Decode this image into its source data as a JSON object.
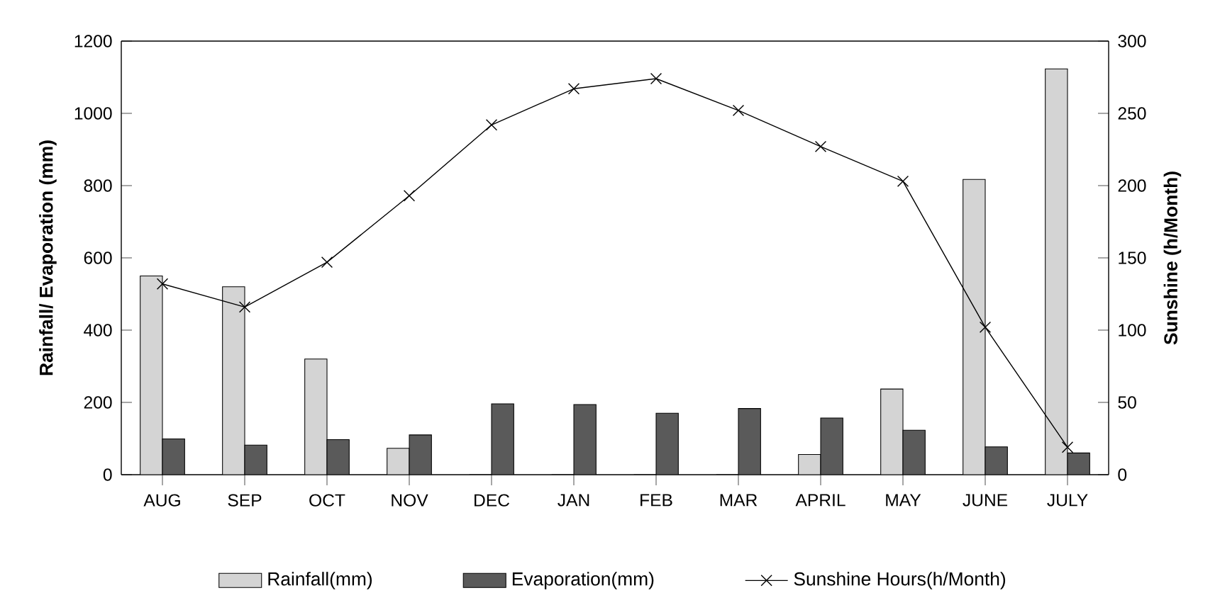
{
  "chart_data": {
    "type": "bar",
    "categories": [
      "AUG",
      "SEP",
      "OCT",
      "NOV",
      "DEC",
      "JAN",
      "FEB",
      "MAR",
      "APRIL",
      "MAY",
      "JUNE",
      "JULY"
    ],
    "ylabel": "Rainfall/ Evaporation (mm)",
    "y2label": "Sunshine (h/Month)",
    "ylim": [
      0,
      1200
    ],
    "yticks": [
      0,
      200,
      400,
      600,
      800,
      1000,
      1200
    ],
    "y2lim": [
      0,
      300
    ],
    "y2ticks": [
      0,
      50,
      100,
      150,
      200,
      250,
      300
    ],
    "series": [
      {
        "name": "Rainfall(mm)",
        "color": "#d4d4d4",
        "values": [
          550,
          520,
          320,
          73,
          0,
          0,
          0,
          0,
          56,
          237,
          817,
          1123
        ]
      },
      {
        "name": "Evaporation(mm)",
        "color": "#5a5a5a",
        "values": [
          99,
          82,
          97,
          110,
          196,
          194,
          170,
          183,
          157,
          123,
          77,
          60
        ]
      },
      {
        "name": "Sunshine Hours(h/Month)",
        "type": "line",
        "axis": "y2",
        "color": "#000000",
        "values": [
          132,
          116,
          147,
          193,
          242,
          267,
          274,
          252,
          227,
          203,
          102,
          19
        ]
      }
    ],
    "marker": "cross",
    "line_style": "solid",
    "legend": "bottom",
    "grid": false
  }
}
